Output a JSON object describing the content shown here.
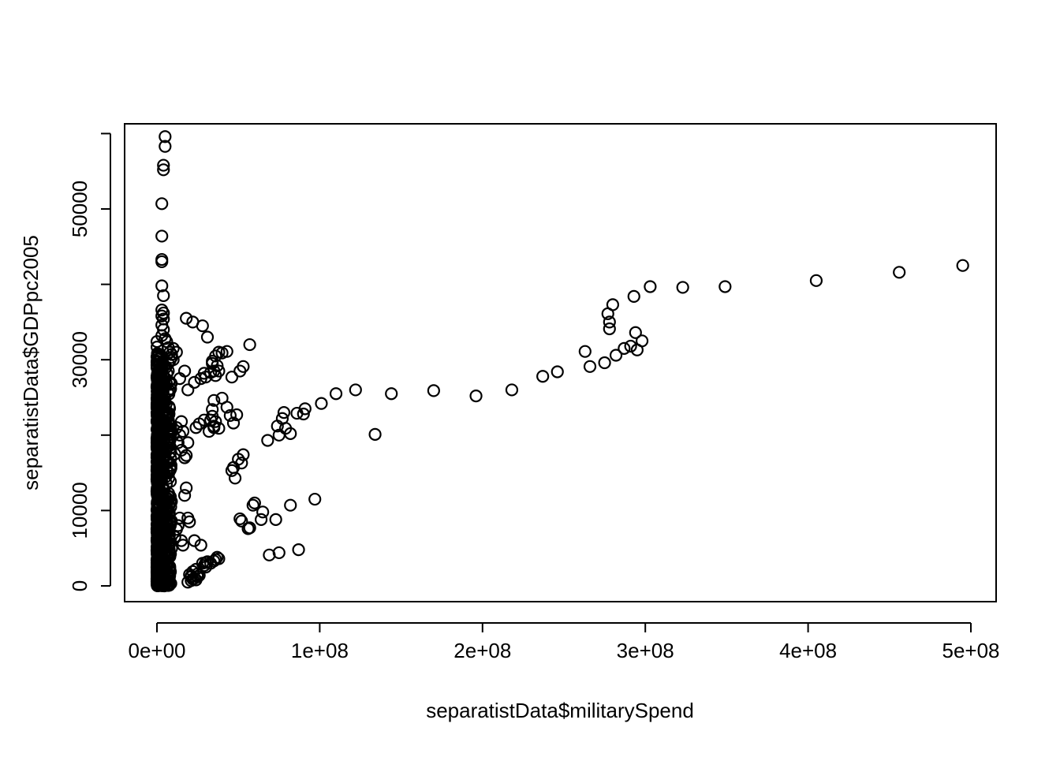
{
  "chart_data": {
    "type": "scatter",
    "title": "",
    "xlabel": "separatistData$militarySpend",
    "ylabel": "separatistData$GDPpc2005",
    "xlim": [
      -20000000,
      516000000
    ],
    "ylim": [
      -4000000,
      62000
    ],
    "x_ticks": [
      0,
      100000000,
      200000000,
      300000000,
      400000000,
      500000000
    ],
    "x_tick_labels": [
      "0e+00",
      "1e+08",
      "2e+08",
      "3e+08",
      "4e+08",
      "5e+08"
    ],
    "y_ticks": [
      0,
      10000,
      30000,
      50000
    ],
    "y_tick_labels": [
      "0",
      "10000",
      "30000",
      "50000"
    ],
    "y_minor_ticks": [
      20000,
      40000,
      60000
    ],
    "marker": "open-circle",
    "color": "#000000",
    "x": [
      495000000,
      456000000,
      405000000,
      349000000,
      323000000,
      303000000,
      293000000,
      280000000,
      277000000,
      278000000,
      278000000,
      294000000,
      298000000,
      291000000,
      287000000,
      295000000,
      282000000,
      275000000,
      266000000,
      263000000,
      246000000,
      237000000,
      218000000,
      196000000,
      170000000,
      144000000,
      122000000,
      110000000,
      101000000,
      134000000,
      91000000,
      90000000,
      86000000,
      78000000,
      77000000,
      74000000,
      79000000,
      82000000,
      75000000,
      68000000,
      97000000,
      82000000,
      60000000,
      59000000,
      65000000,
      64000000,
      73000000,
      57000000,
      56000000,
      52000000,
      51000000,
      87000000,
      75000000,
      69000000,
      57000000,
      53000000,
      51000000,
      53000000,
      52000000,
      50000000,
      48000000,
      46000000,
      47000000,
      45000000,
      49000000,
      47000000,
      43000000,
      40000000,
      38000000,
      36000000,
      34000000,
      37000000,
      35000000,
      33000000,
      30000000,
      29000000,
      27000000,
      34000000,
      35000000,
      36000000,
      33000000,
      38000000,
      35000000,
      34000000,
      36000000,
      40000000,
      43000000,
      46000000,
      37000000,
      38000000,
      36000000,
      35000000,
      30000000,
      31000000,
      33000000,
      28000000,
      29000000,
      30000000,
      24000000,
      22000000,
      25000000,
      20000000,
      21000000,
      26000000,
      23000000,
      24000000,
      25000000,
      22000000,
      21000000,
      19000000,
      21000000,
      18000000,
      17000000,
      16000000,
      15000000,
      19000000,
      20000000,
      23000000,
      27000000,
      14000000,
      12000000,
      13000000,
      11000000,
      9000000,
      8000000,
      7000000,
      15000000,
      14000000,
      12000000,
      10000000,
      13000000,
      11000000,
      17000000,
      18000000,
      19000000,
      16000000,
      15000000,
      24000000,
      26000000,
      29000000,
      32000000,
      35000000,
      23000000,
      19000000,
      17000000,
      14000000,
      10000000,
      12000000,
      18000000,
      22000000,
      28000000,
      31000000,
      34000000,
      38000000,
      5000000,
      5000000,
      4000000,
      4000000,
      3000000,
      3000000,
      3000000,
      3000000,
      3000000,
      4000000,
      3000000,
      4000000,
      3000000,
      4000000,
      3000000,
      4000000,
      3000000,
      5000000,
      6000000,
      7000000,
      8000000,
      9000000,
      10000000,
      9000000,
      8000000,
      7000000
    ],
    "y": [
      42500,
      41600,
      40500,
      39700,
      39600,
      39700,
      38400,
      37300,
      36100,
      35000,
      34100,
      33600,
      32500,
      31800,
      31500,
      31300,
      30600,
      29600,
      29100,
      31100,
      28400,
      27800,
      26000,
      25200,
      25900,
      25500,
      26000,
      25500,
      24200,
      20100,
      23500,
      22800,
      22900,
      23000,
      22200,
      21200,
      20900,
      20200,
      20000,
      19300,
      11500,
      10700,
      11000,
      10700,
      9800,
      8800,
      8800,
      7700,
      7600,
      8600,
      8900,
      4800,
      4400,
      4100,
      32000,
      29100,
      28500,
      17400,
      16300,
      16800,
      14300,
      15300,
      15700,
      22600,
      22700,
      21600,
      31100,
      30900,
      31000,
      30500,
      29800,
      29200,
      28500,
      28300,
      27700,
      28200,
      27500,
      23400,
      24600,
      21800,
      22000,
      20900,
      21200,
      22500,
      27900,
      24900,
      23700,
      27700,
      3800,
      3600,
      3500,
      3300,
      3100,
      3200,
      3000,
      3000,
      2700,
      2500,
      2200,
      1900,
      1600,
      1500,
      1200,
      1400,
      1000,
      800,
      1200,
      900,
      700,
      500,
      1300,
      13000,
      12000,
      5400,
      6000,
      9000,
      8500,
      6000,
      5400,
      9000,
      7500,
      8000,
      6500,
      5000,
      6000,
      4000,
      18000,
      20000,
      21000,
      20000,
      19000,
      17500,
      17000,
      17300,
      19000,
      20500,
      21800,
      21000,
      21500,
      22000,
      20500,
      21000,
      27000,
      26000,
      28500,
      27500,
      30000,
      31000,
      35500,
      35000,
      34500,
      33000,
      29500,
      28500,
      59600,
      58300,
      55200,
      55800,
      50700,
      46400,
      43000,
      43300,
      39800,
      38500,
      36600,
      36200,
      35800,
      35400,
      34600,
      34000,
      33200,
      32800,
      32400,
      31600,
      31000,
      30700,
      31500,
      30300,
      29900,
      29500
    ],
    "dense_cluster": {
      "x_min": 0,
      "x_max": 9000000,
      "y_min": 0,
      "y_max": 33000,
      "note_count": 650
    }
  }
}
